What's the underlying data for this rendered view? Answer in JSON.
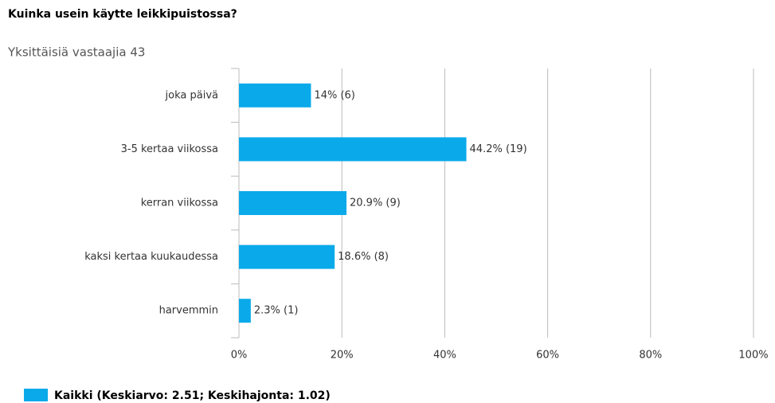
{
  "chart_data": {
    "type": "bar",
    "orientation": "horizontal",
    "title": "Kuinka usein käytte leikkipuistossa?",
    "subtitle": "Yksittäisiä vastaajia 43",
    "categories": [
      "joka päivä",
      "3-5 kertaa viikossa",
      "kerran viikossa",
      "kaksi kertaa kuukaudessa",
      "harvemmin"
    ],
    "series": [
      {
        "name": "Kaikki (Keskiarvo: 2.51; Keskihajonta: 1.02)",
        "color": "#0aaaea",
        "values": [
          14,
          44.2,
          20.9,
          18.6,
          2.3
        ],
        "value_labels": [
          "14% (6)",
          "44.2% (19)",
          "20.9% (9)",
          "18.6% (8)",
          "2.3% (1)"
        ]
      }
    ],
    "xlim": [
      0,
      100
    ],
    "xticks": [
      {
        "value": 0,
        "label": "0%"
      },
      {
        "value": 20,
        "label": "20%"
      },
      {
        "value": 40,
        "label": "40%"
      },
      {
        "value": 60,
        "label": "60%"
      },
      {
        "value": 80,
        "label": "80%"
      },
      {
        "value": 100,
        "label": "100%"
      }
    ],
    "grid": true,
    "legend": "bottom-left"
  }
}
